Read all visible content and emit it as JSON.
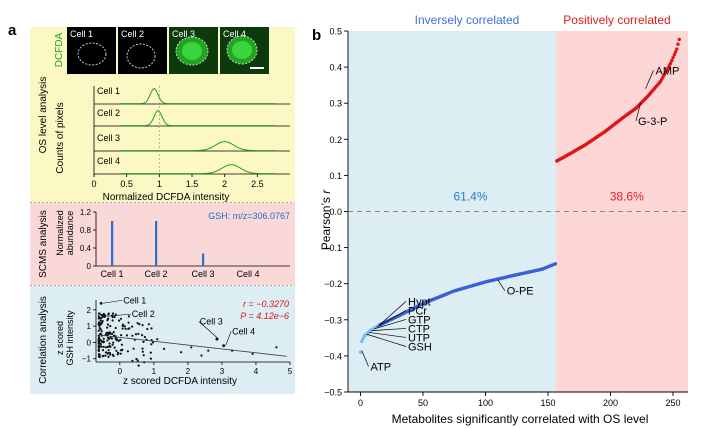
{
  "panel_a": {
    "label": "a",
    "dcfda_tag": "DCFDA",
    "cells": [
      "Cell 1",
      "Cell 2",
      "Cell 3",
      "Cell 4"
    ],
    "os": {
      "section_title": "OS level analysis",
      "ylabel": "Counts of pixels",
      "xlabel": "Normalized DCFDA intensity",
      "xticks": [
        "0",
        "0.5",
        "1",
        "1.5",
        "2",
        "2.5"
      ]
    },
    "scms": {
      "section_title": "SCMS analysis",
      "ylabel_line1": "Normalized",
      "ylabel_line2": "abundance",
      "legend": "GSH: m/z=306.0767",
      "yticks": [
        "0",
        "0.4",
        "0.8",
        "1.2"
      ]
    },
    "corr": {
      "section_title": "Correlation analysis",
      "ylabel_line1": "z scored",
      "ylabel_line2": "GSH intensity",
      "xlabel": "z scored DCFDA intensity",
      "r_text": "r = −0.3270",
      "p_text": "P = 4.12e−6",
      "xticks": [
        "0",
        "1",
        "2",
        "3",
        "4",
        "5"
      ],
      "yticks": [
        "−1",
        "0",
        "1",
        "2"
      ]
    }
  },
  "panel_b": {
    "label": "b",
    "region_negative": "Inversely correlated",
    "region_positive": "Positively correlated",
    "pct_negative": "61.4%",
    "pct_positive": "38.6%",
    "colors": {
      "negative_bg": "#dcedf4",
      "positive_bg": "#fdd6d6",
      "negative_points": "#3d5fd6",
      "positive_points": "#e01515",
      "highlight_points": "#7ab8ee",
      "negative_text": "#3d6fd8",
      "positive_text": "#e01c1c",
      "pct_negative_text": "#2a80c4",
      "pct_positive_text": "#e02020"
    },
    "annotations": [
      "AMP",
      "G-3-P",
      "O-PE",
      "Hypt",
      "PCr",
      "GTP",
      "CTP",
      "UTP",
      "GSH",
      "ATP"
    ]
  },
  "chart_data": [
    {
      "type": "line",
      "title": "OS level analysis",
      "xlabel": "Normalized DCFDA intensity",
      "ylabel": "Counts of pixels",
      "xlim": [
        0,
        3
      ],
      "series": [
        {
          "name": "Cell 1",
          "peak": 0.92
        },
        {
          "name": "Cell 2",
          "peak": 0.98
        },
        {
          "name": "Cell 3",
          "peak": 2.0
        },
        {
          "name": "Cell 4",
          "peak": 2.1
        }
      ]
    },
    {
      "type": "bar",
      "title": "SCMS analysis",
      "ylabel": "Normalized abundance",
      "categories": [
        "Cell 1",
        "Cell 2",
        "Cell 3",
        "Cell 4"
      ],
      "values": [
        1.0,
        1.0,
        0.28,
        0.0
      ],
      "ylim": [
        0,
        1.2
      ]
    },
    {
      "type": "scatter",
      "title": "Correlation analysis",
      "xlabel": "z scored DCFDA intensity",
      "ylabel": "z scored GSH intensity",
      "xlim": [
        -0.7,
        5
      ],
      "ylim": [
        -1.2,
        2.6
      ],
      "r": -0.327,
      "p": "4.12e-6",
      "labeled_points": [
        {
          "label": "Cell 1",
          "x": -0.55,
          "y": 2.4
        },
        {
          "label": "Cell 2",
          "x": -0.45,
          "y": 1.6
        },
        {
          "label": "Cell 3",
          "x": 2.85,
          "y": 0.2
        },
        {
          "label": "Cell 4",
          "x": 3.05,
          "y": -0.2
        }
      ]
    },
    {
      "type": "scatter",
      "xlabel": "Metabolites significantly correlated with OS level",
      "ylabel": "Pearson's r",
      "xlim": [
        -10,
        262
      ],
      "ylim": [
        -0.5,
        0.5
      ],
      "xticks": [
        0,
        50,
        100,
        150,
        200,
        250
      ],
      "yticks": [
        -0.5,
        -0.4,
        -0.3,
        -0.2,
        -0.1,
        0.0,
        0.1,
        0.2,
        0.3,
        0.4,
        0.5
      ],
      "reference_line": 0.0,
      "n_negative": 157,
      "n_positive": 99,
      "negative_anchors": [
        [
          0,
          -0.39
        ],
        [
          1,
          -0.36
        ],
        [
          3,
          -0.345
        ],
        [
          8,
          -0.33
        ],
        [
          15,
          -0.315
        ],
        [
          30,
          -0.29
        ],
        [
          50,
          -0.255
        ],
        [
          75,
          -0.22
        ],
        [
          100,
          -0.195
        ],
        [
          125,
          -0.175
        ],
        [
          145,
          -0.16
        ],
        [
          156,
          -0.145
        ]
      ],
      "positive_anchors": [
        [
          157,
          0.14
        ],
        [
          165,
          0.155
        ],
        [
          180,
          0.185
        ],
        [
          195,
          0.22
        ],
        [
          210,
          0.26
        ],
        [
          220,
          0.285
        ],
        [
          230,
          0.32
        ],
        [
          240,
          0.36
        ],
        [
          248,
          0.41
        ],
        [
          253,
          0.45
        ],
        [
          256,
          0.49
        ]
      ],
      "labeled_points": [
        {
          "label": "AMP",
          "x": 228,
          "y": 0.34
        },
        {
          "label": "G-3-P",
          "x": 224,
          "y": 0.3
        },
        {
          "label": "O-PE",
          "x": 110,
          "y": -0.19
        },
        {
          "label": "Hypt",
          "x": 15,
          "y": -0.315
        },
        {
          "label": "PCr",
          "x": 13,
          "y": -0.32
        },
        {
          "label": "GTP",
          "x": 11,
          "y": -0.325
        },
        {
          "label": "CTP",
          "x": 9,
          "y": -0.33
        },
        {
          "label": "UTP",
          "x": 7,
          "y": -0.335
        },
        {
          "label": "GSH",
          "x": 5,
          "y": -0.34
        },
        {
          "label": "ATP",
          "x": 1,
          "y": -0.385
        }
      ]
    }
  ]
}
